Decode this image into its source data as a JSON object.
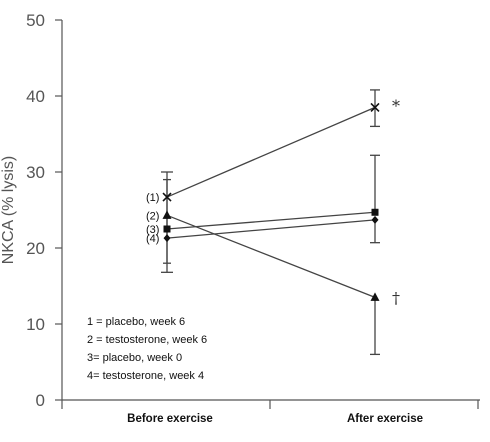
{
  "chart_data": {
    "type": "line",
    "ylabel": "NKCA (% lysis)",
    "xlabel": "",
    "ylim": [
      0,
      50
    ],
    "yticks": [
      0,
      10,
      20,
      30,
      40,
      50
    ],
    "categories": [
      "Before exercise",
      "After exercise"
    ],
    "grid": false,
    "series": [
      {
        "name": "(1)",
        "marker": "x",
        "values": [
          26.7,
          38.5
        ],
        "error_bars": [
          [
            null,
            null
          ],
          [
            36.0,
            40.8
          ]
        ],
        "annotation": "*"
      },
      {
        "name": "(2)",
        "marker": "triangle",
        "values": [
          24.3,
          13.5
        ],
        "error_bars": [
          [
            null,
            null
          ],
          [
            6.0,
            null
          ]
        ],
        "annotation": "†"
      },
      {
        "name": "(3)",
        "marker": "square",
        "values": [
          22.5,
          24.7
        ],
        "error_bars": [
          [
            null,
            null
          ],
          [
            null,
            32.2
          ]
        ],
        "annotation": ""
      },
      {
        "name": "(4)",
        "marker": "diamond",
        "values": [
          21.3,
          23.7
        ],
        "error_bars": [
          [
            null,
            null
          ],
          [
            20.7,
            null
          ]
        ],
        "annotation": ""
      }
    ],
    "before_error_range": [
      16.8,
      30.0
    ],
    "before_error_inner": [
      18.0,
      29.0
    ],
    "legend": [
      "1  =  placebo, week 6",
      "2  =  testosterone, week 6",
      "3= placebo, week 0",
      "4= testosterone, week 4"
    ],
    "legend_position": "bottom-left",
    "colors": {
      "line": "#444444",
      "marker": "#111111",
      "axis": "#555555"
    }
  }
}
